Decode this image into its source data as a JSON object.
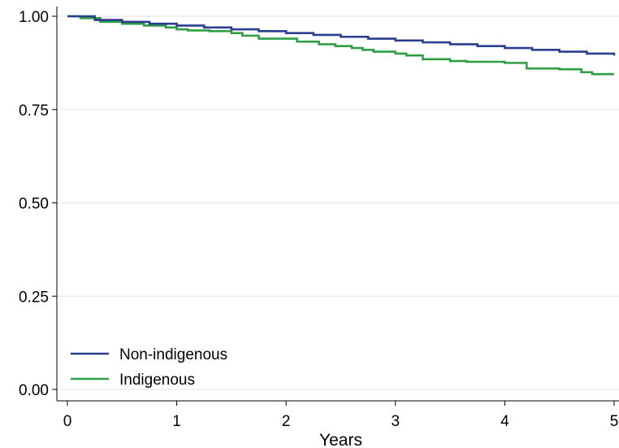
{
  "chart_data": {
    "type": "line",
    "title": "",
    "xlabel": "Years",
    "ylabel": "",
    "xlim": [
      0,
      5
    ],
    "ylim": [
      0,
      1
    ],
    "x_ticks": [
      "0",
      "1",
      "2",
      "3",
      "4",
      "5"
    ],
    "y_ticks": [
      "0.00",
      "0.25",
      "0.50",
      "0.75",
      "1.00"
    ],
    "grid": "horizontal",
    "legend_position": "bottom-left",
    "step": true,
    "series": [
      {
        "name": "Non-indigenous",
        "color": "#2a3d8f",
        "x": [
          0,
          0.25,
          0.5,
          0.75,
          1.0,
          1.25,
          1.5,
          1.75,
          2.0,
          2.25,
          2.5,
          2.75,
          3.0,
          3.25,
          3.5,
          3.75,
          4.0,
          4.25,
          4.5,
          4.75,
          5.0
        ],
        "y": [
          1.0,
          0.99,
          0.985,
          0.98,
          0.975,
          0.97,
          0.965,
          0.96,
          0.955,
          0.95,
          0.945,
          0.94,
          0.935,
          0.93,
          0.925,
          0.92,
          0.915,
          0.91,
          0.905,
          0.9,
          0.895
        ]
      },
      {
        "name": "Indigenous",
        "color": "#2e9e44",
        "x": [
          0,
          0.12,
          0.3,
          0.5,
          0.7,
          0.9,
          1.0,
          1.1,
          1.3,
          1.5,
          1.6,
          1.75,
          2.1,
          2.3,
          2.45,
          2.6,
          2.7,
          2.8,
          3.0,
          3.1,
          3.25,
          3.5,
          3.65,
          4.0,
          4.2,
          4.5,
          4.7,
          4.8,
          5.0
        ],
        "y": [
          1.0,
          0.995,
          0.985,
          0.98,
          0.975,
          0.97,
          0.965,
          0.962,
          0.96,
          0.955,
          0.948,
          0.94,
          0.932,
          0.925,
          0.92,
          0.915,
          0.91,
          0.905,
          0.9,
          0.895,
          0.885,
          0.88,
          0.878,
          0.875,
          0.86,
          0.858,
          0.85,
          0.845,
          0.845
        ]
      }
    ]
  }
}
